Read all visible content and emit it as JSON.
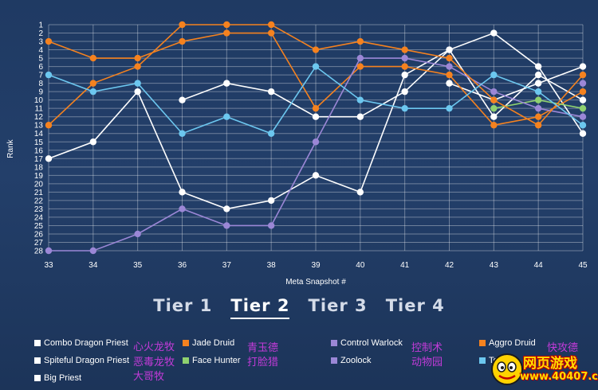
{
  "chart_data": {
    "type": "line",
    "xlabel": "Meta Snapshot #",
    "ylabel": "Rank",
    "x": [
      33,
      34,
      35,
      36,
      37,
      38,
      39,
      40,
      41,
      42,
      43,
      44,
      45
    ],
    "yticks": [
      1,
      2,
      3,
      4,
      5,
      6,
      7,
      8,
      9,
      10,
      11,
      12,
      13,
      14,
      15,
      16,
      17,
      18,
      19,
      20,
      21,
      22,
      23,
      24,
      25,
      26,
      27,
      28
    ],
    "ylim": [
      1,
      28
    ],
    "y_inverted": true,
    "grid": true,
    "series": [
      {
        "name": "Combo Dragon Priest",
        "color": "#ffffff",
        "values": [
          17,
          15,
          9,
          21,
          23,
          22,
          19,
          21,
          7,
          4,
          2,
          6,
          14
        ]
      },
      {
        "name": "Spiteful Dragon Priest",
        "color": "#ffffff",
        "values": [
          null,
          null,
          null,
          10,
          8,
          9,
          12,
          12,
          9,
          4,
          12,
          7,
          10
        ]
      },
      {
        "name": "Big Priest",
        "color": "#ffffff",
        "values": [
          null,
          null,
          null,
          null,
          null,
          null,
          null,
          null,
          null,
          8,
          10,
          8,
          6
        ]
      },
      {
        "name": "Jade Druid",
        "color": "#f5821f",
        "values": [
          3,
          5,
          5,
          3,
          2,
          2,
          11,
          6,
          6,
          7,
          13,
          12,
          9
        ]
      },
      {
        "name": "Face Hunter",
        "color": "#8fd16f",
        "values": [
          null,
          null,
          null,
          null,
          null,
          null,
          null,
          null,
          null,
          null,
          11,
          10,
          11
        ]
      },
      {
        "name": "Control Warlock",
        "color": "#9b87d6",
        "values": [
          28,
          28,
          26,
          23,
          25,
          25,
          15,
          5,
          5,
          6,
          9,
          11,
          12
        ]
      },
      {
        "name": "Zoolock",
        "color": "#9b87d6",
        "values": [
          null,
          null,
          null,
          null,
          null,
          null,
          null,
          null,
          null,
          null,
          null,
          null,
          8
        ]
      },
      {
        "name": "Aggro Druid",
        "color": "#f5821f",
        "values": [
          13,
          8,
          6,
          1,
          1,
          1,
          4,
          3,
          4,
          5,
          10,
          13,
          7
        ]
      },
      {
        "name": "Te...",
        "color": "#6cc7ef",
        "values": [
          7,
          9,
          8,
          14,
          12,
          14,
          6,
          10,
          11,
          11,
          7,
          9,
          13
        ]
      }
    ]
  },
  "tabs": [
    {
      "label": "Tier 1",
      "active": false
    },
    {
      "label": "Tier 2",
      "active": true
    },
    {
      "label": "Tier 3",
      "active": false
    },
    {
      "label": "Tier 4",
      "active": false
    }
  ],
  "legend": [
    {
      "label": "Combo Dragon Priest",
      "color": "#ffffff",
      "cn": "心火龙牧"
    },
    {
      "label": "Spiteful Dragon Priest",
      "color": "#ffffff",
      "cn": "恶毒龙牧"
    },
    {
      "label": "Big Priest",
      "color": "#ffffff",
      "cn": "大哥牧"
    },
    {
      "label": "Jade Druid",
      "color": "#f5821f",
      "cn": "青玉德"
    },
    {
      "label": "Face Hunter",
      "color": "#8fd16f",
      "cn": "打脸猎"
    },
    {
      "label": "Control Warlock",
      "color": "#9b87d6",
      "cn": "控制术"
    },
    {
      "label": "Zoolock",
      "color": "#9b87d6",
      "cn": "动物园"
    },
    {
      "label": "Aggro Druid",
      "color": "#f5821f",
      "cn": "快攻德"
    },
    {
      "label": "Te",
      "color": "#6cc7ef",
      "cn": ""
    }
  ],
  "watermark": {
    "title": "网页游戏",
    "url": "www.40407.com"
  }
}
